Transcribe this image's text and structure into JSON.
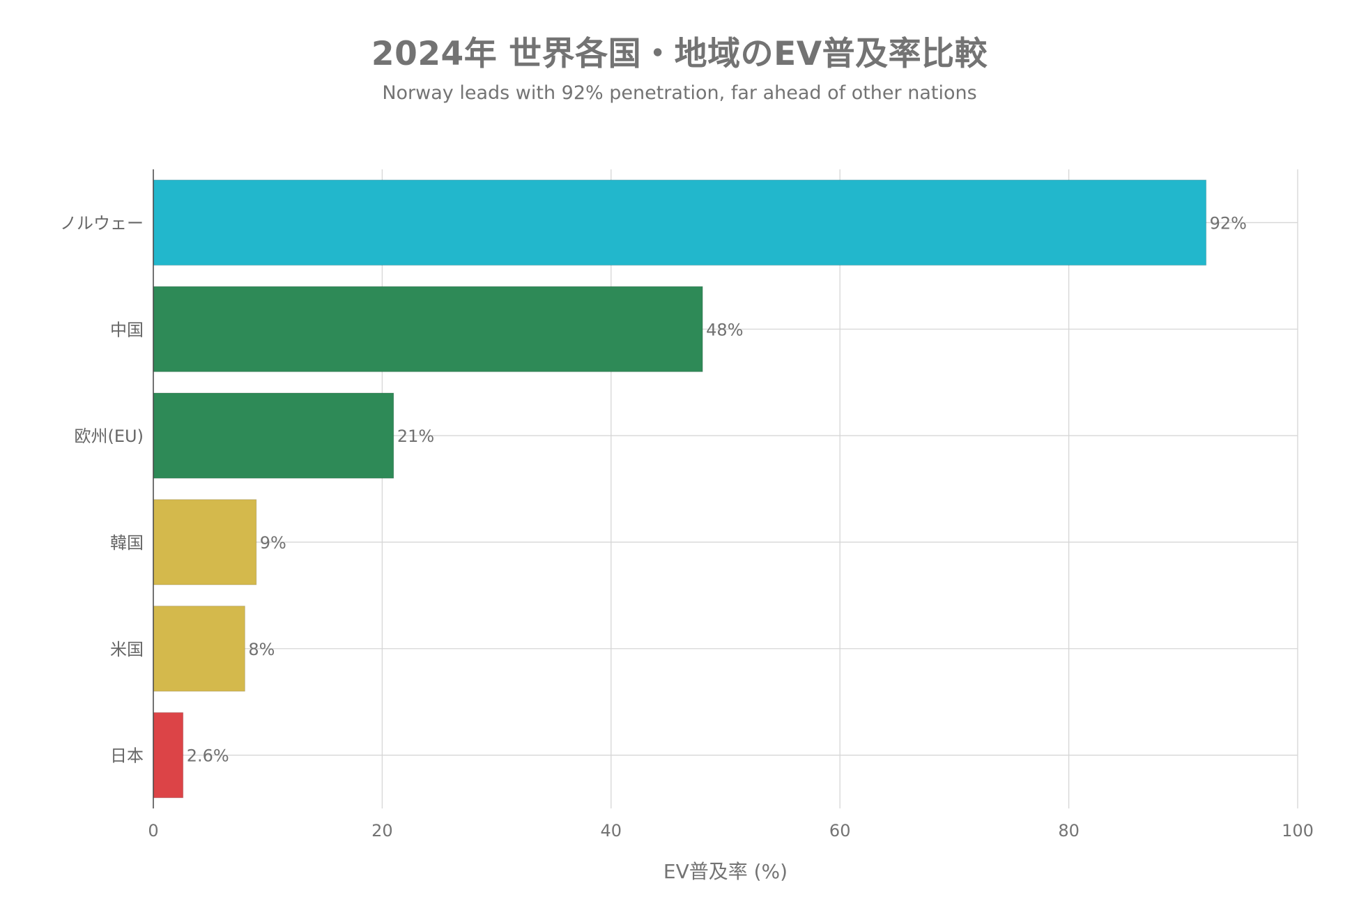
{
  "chart_data": {
    "type": "bar",
    "orientation": "horizontal",
    "title": "2024年 世界各国・地域のEV普及率比較",
    "subtitle": "Norway leads with 92% penetration, far ahead of other nations",
    "xlabel": "EV普及率 (%)",
    "ylabel": "",
    "xlim": [
      0,
      100
    ],
    "x_ticks": [
      "0",
      "20",
      "40",
      "60",
      "80",
      "100"
    ],
    "grid": true,
    "categories": [
      "ノルウェー",
      "中国",
      "欧州(EU)",
      "韓国",
      "米国",
      "日本"
    ],
    "values": [
      92,
      48,
      21,
      9,
      8,
      2.6
    ],
    "data_labels": [
      "92%",
      "48%",
      "21%",
      "9%",
      "8%",
      "2.6%"
    ],
    "colors": [
      "#22b7cc",
      "#2e8a57",
      "#2e8a57",
      "#d4b94c",
      "#d4b94c",
      "#dc4447"
    ]
  }
}
